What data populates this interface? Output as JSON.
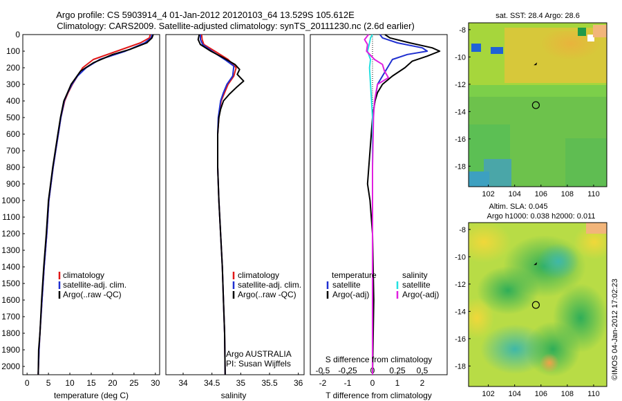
{
  "header": {
    "line1": "Argo profile: CS 5903914_4 01-Jan-2012 20120103_64 13.529S 105.612E",
    "line2": "Climatology: CARS2009. Satellite-adjusted climatology: synTS_20111230.nc (2.6d earlier)"
  },
  "colors": {
    "climatology": "#e01818",
    "satellite": "#1f2fd0",
    "argo": "#000000",
    "salinity_satellite": "#22e0e0",
    "salinity_argo": "#e020e0"
  },
  "chart_data": [
    {
      "type": "line",
      "panel": "temperature",
      "xlabel": "temperature (deg C)",
      "xlim": [
        -1,
        31
      ],
      "xticks": [
        0,
        5,
        10,
        15,
        20,
        25,
        30
      ],
      "ylim": [
        2050,
        0
      ],
      "yticks": [
        0,
        100,
        200,
        300,
        400,
        500,
        600,
        700,
        800,
        900,
        1000,
        1100,
        1200,
        1300,
        1400,
        1500,
        1600,
        1700,
        1800,
        1900,
        2000
      ],
      "legend": [
        "climatology",
        "satellite-adj. clim.",
        "Argo(..raw -QC)"
      ],
      "series": [
        {
          "name": "climatology",
          "color_key": "climatology",
          "points": [
            [
              28.8,
              0
            ],
            [
              28.6,
              20
            ],
            [
              26.5,
              50
            ],
            [
              21,
              100
            ],
            [
              15.5,
              150
            ],
            [
              13,
              200
            ],
            [
              11.8,
              250
            ],
            [
              10.6,
              300
            ],
            [
              9.6,
              350
            ],
            [
              8.8,
              400
            ],
            [
              7.9,
              500
            ],
            [
              7.3,
              600
            ],
            [
              6.7,
              700
            ],
            [
              6.1,
              800
            ],
            [
              5.6,
              900
            ],
            [
              5.1,
              1000
            ],
            [
              4.6,
              1200
            ],
            [
              4.0,
              1400
            ],
            [
              3.5,
              1600
            ],
            [
              3.0,
              1800
            ],
            [
              2.8,
              1900
            ],
            [
              2.6,
              2050
            ]
          ]
        },
        {
          "name": "satellite-adj. clim.",
          "color_key": "satellite",
          "points": [
            [
              29.2,
              0
            ],
            [
              29,
              20
            ],
            [
              27.5,
              50
            ],
            [
              23,
              100
            ],
            [
              17,
              150
            ],
            [
              13.8,
              200
            ],
            [
              11.8,
              250
            ],
            [
              10.5,
              300
            ],
            [
              9.5,
              350
            ],
            [
              8.7,
              400
            ],
            [
              7.9,
              500
            ],
            [
              7.3,
              600
            ],
            [
              6.7,
              700
            ],
            [
              6.1,
              800
            ],
            [
              5.6,
              900
            ],
            [
              5.1,
              1000
            ],
            [
              4.6,
              1200
            ],
            [
              4.0,
              1400
            ],
            [
              3.5,
              1600
            ],
            [
              3.0,
              1800
            ],
            [
              2.8,
              1900
            ],
            [
              2.6,
              2050
            ]
          ]
        },
        {
          "name": "Argo(..raw -QC)",
          "color_key": "argo",
          "points": [
            [
              29.5,
              0
            ],
            [
              29.2,
              20
            ],
            [
              28,
              50
            ],
            [
              24,
              90
            ],
            [
              20,
              120
            ],
            [
              15.5,
              170
            ],
            [
              12.5,
              220
            ],
            [
              11.4,
              260
            ],
            [
              10.3,
              300
            ],
            [
              9.3,
              360
            ],
            [
              8.6,
              400
            ],
            [
              7.8,
              500
            ],
            [
              7.2,
              600
            ],
            [
              6.6,
              700
            ],
            [
              6.0,
              800
            ],
            [
              5.5,
              900
            ],
            [
              5.0,
              1000
            ],
            [
              4.5,
              1200
            ],
            [
              3.9,
              1400
            ],
            [
              3.4,
              1600
            ],
            [
              3.0,
              1800
            ],
            [
              2.7,
              1900
            ],
            [
              2.6,
              2050
            ]
          ]
        }
      ]
    },
    {
      "type": "line",
      "panel": "salinity",
      "xlabel": "salinity",
      "xlim": [
        33.7,
        36.1
      ],
      "xticks": [
        34,
        34.5,
        35,
        35.5,
        36
      ],
      "ylim": [
        2050,
        0
      ],
      "legend": [
        "climatology",
        "satellite-adj. clim.",
        "Argo(..raw -QC)"
      ],
      "annotation": [
        "Argo AUSTRALIA",
        "PI: Susan Wijffels"
      ],
      "series": [
        {
          "name": "climatology",
          "color_key": "climatology",
          "points": [
            [
              34.32,
              0
            ],
            [
              34.33,
              30
            ],
            [
              34.36,
              60
            ],
            [
              34.55,
              100
            ],
            [
              34.78,
              150
            ],
            [
              34.92,
              200
            ],
            [
              34.88,
              250
            ],
            [
              34.78,
              300
            ],
            [
              34.72,
              350
            ],
            [
              34.66,
              400
            ],
            [
              34.62,
              500
            ],
            [
              34.6,
              600
            ],
            [
              34.6,
              800
            ],
            [
              34.62,
              1000
            ],
            [
              34.65,
              1200
            ],
            [
              34.68,
              1400
            ],
            [
              34.7,
              1600
            ],
            [
              34.72,
              1800
            ],
            [
              34.73,
              2050
            ]
          ]
        },
        {
          "name": "satellite-adj. clim.",
          "color_key": "satellite",
          "points": [
            [
              34.3,
              0
            ],
            [
              34.3,
              30
            ],
            [
              34.34,
              60
            ],
            [
              34.5,
              100
            ],
            [
              34.72,
              150
            ],
            [
              34.88,
              190
            ],
            [
              34.86,
              250
            ],
            [
              34.76,
              300
            ],
            [
              34.7,
              350
            ],
            [
              34.65,
              400
            ],
            [
              34.61,
              500
            ],
            [
              34.6,
              600
            ],
            [
              34.6,
              800
            ],
            [
              34.62,
              1000
            ],
            [
              34.65,
              1200
            ],
            [
              34.68,
              1400
            ],
            [
              34.7,
              1600
            ],
            [
              34.72,
              1800
            ],
            [
              34.73,
              2050
            ]
          ]
        },
        {
          "name": "Argo(..raw -QC)",
          "color_key": "argo",
          "points": [
            [
              34.28,
              0
            ],
            [
              34.26,
              30
            ],
            [
              34.3,
              60
            ],
            [
              34.48,
              100
            ],
            [
              34.7,
              140
            ],
            [
              34.9,
              180
            ],
            [
              34.98,
              210
            ],
            [
              34.94,
              240
            ],
            [
              35.05,
              280
            ],
            [
              34.92,
              320
            ],
            [
              34.8,
              360
            ],
            [
              34.7,
              400
            ],
            [
              34.65,
              450
            ],
            [
              34.62,
              500
            ],
            [
              34.6,
              600
            ],
            [
              34.6,
              800
            ],
            [
              34.62,
              1000
            ],
            [
              34.65,
              1200
            ],
            [
              34.68,
              1400
            ],
            [
              34.7,
              1600
            ],
            [
              34.72,
              1800
            ],
            [
              34.73,
              2050
            ]
          ]
        }
      ]
    },
    {
      "type": "line",
      "panel": "differences",
      "xlabel": "T difference from climatology",
      "xlabel_top": "S difference from climatology",
      "xlim": [
        -2.5,
        3
      ],
      "xticks": [
        -2,
        -1,
        0,
        1,
        2
      ],
      "sticks": [
        -0.5,
        -0.25,
        0,
        0.25,
        0.5
      ],
      "ylim": [
        2050,
        0
      ],
      "legend": {
        "temperature": [
          "satellite",
          "Argo(-adj)"
        ],
        "salinity": [
          "satellite",
          "Argo(-adj)"
        ]
      },
      "legend_titles": [
        "temperature",
        "salinity"
      ],
      "series": [
        {
          "name": "T satellite",
          "color_key": "satellite",
          "points": [
            [
              0.3,
              0
            ],
            [
              0.4,
              20
            ],
            [
              1.0,
              50
            ],
            [
              2.0,
              80
            ],
            [
              2.2,
              100
            ],
            [
              1.4,
              120
            ],
            [
              0.8,
              150
            ],
            [
              0.6,
              200
            ],
            [
              0.4,
              250
            ],
            [
              0.2,
              300
            ],
            [
              0.1,
              400
            ],
            [
              0,
              500
            ],
            [
              0,
              800
            ],
            [
              0,
              1200
            ],
            [
              0,
              1600
            ],
            [
              0,
              2050
            ]
          ]
        },
        {
          "name": "T Argo(-adj)",
          "color_key": "argo",
          "points": [
            [
              0.5,
              0
            ],
            [
              0.7,
              20
            ],
            [
              1.5,
              50
            ],
            [
              2.4,
              80
            ],
            [
              2.7,
              100
            ],
            [
              2.2,
              130
            ],
            [
              1.6,
              160
            ],
            [
              1.3,
              200
            ],
            [
              0.8,
              250
            ],
            [
              0.4,
              300
            ],
            [
              0.2,
              350
            ],
            [
              0.1,
              400
            ],
            [
              0,
              500
            ],
            [
              -0.1,
              700
            ],
            [
              -0.2,
              900
            ],
            [
              -0.1,
              1000
            ],
            [
              0,
              1200
            ],
            [
              0.05,
              1600
            ],
            [
              0,
              2050
            ]
          ]
        },
        {
          "name": "S satellite",
          "color_key": "salinity_satellite",
          "points": [
            [
              0,
              0
            ],
            [
              -0.02,
              20
            ],
            [
              -0.03,
              50
            ],
            [
              -0.05,
              100
            ],
            [
              -0.02,
              150
            ],
            [
              -0.03,
              200
            ],
            [
              -0.02,
              300
            ],
            [
              -0.01,
              400
            ],
            [
              0,
              500
            ],
            [
              0,
              1000
            ],
            [
              0,
              1500
            ],
            [
              0,
              2050
            ]
          ]
        },
        {
          "name": "S Argo(-adj)",
          "color_key": "salinity_argo",
          "points": [
            [
              -0.04,
              0
            ],
            [
              -0.08,
              30
            ],
            [
              -0.05,
              60
            ],
            [
              -0.06,
              100
            ],
            [
              0.02,
              150
            ],
            [
              0.1,
              180
            ],
            [
              0.12,
              220
            ],
            [
              0.16,
              260
            ],
            [
              0.05,
              300
            ],
            [
              0.02,
              400
            ],
            [
              0.01,
              500
            ],
            [
              0,
              800
            ],
            [
              0,
              1200
            ],
            [
              0,
              1600
            ],
            [
              0,
              2050
            ]
          ]
        }
      ]
    },
    {
      "type": "heatmap",
      "panel": "sst-map",
      "title": "sat. SST: 28.4  Argo: 28.6",
      "xlim": [
        100.5,
        111
      ],
      "ylim": [
        -19.5,
        -7.5
      ],
      "xticks": [
        102,
        104,
        106,
        108,
        110
      ],
      "yticks": [
        -8,
        -10,
        -12,
        -14,
        -16,
        -18
      ],
      "float_track": {
        "lon": 105.6,
        "lat": -10.5
      },
      "argo_position": {
        "lon": 105.612,
        "lat": -13.529
      }
    },
    {
      "type": "heatmap",
      "panel": "sla-map",
      "title_lines": [
        "Altim. SLA: 0.045",
        "Argo h1000: 0.038  h2000: 0.011"
      ],
      "xlim": [
        100.5,
        111
      ],
      "ylim": [
        -19.5,
        -7.5
      ],
      "xticks": [
        102,
        104,
        106,
        108,
        110
      ],
      "yticks": [
        -8,
        -10,
        -12,
        -14,
        -16,
        -18
      ],
      "float_track": {
        "lon": 105.6,
        "lat": -10.5
      },
      "argo_position": {
        "lon": 105.612,
        "lat": -13.529
      }
    }
  ],
  "side_label": "©IMOS 04-Jan-2012 17:02:23"
}
